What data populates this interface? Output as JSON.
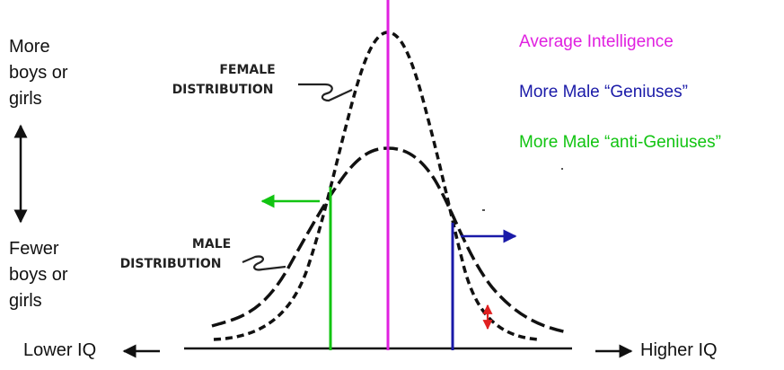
{
  "y_axis": {
    "top_label": [
      "More",
      "boys or",
      "girls"
    ],
    "bottom_label": [
      "Fewer",
      "boys or",
      "girls"
    ]
  },
  "x_axis": {
    "left_label": "Lower IQ",
    "right_label": "Higher IQ"
  },
  "legend": [
    {
      "text": "Average Intelligence",
      "color": "#e020e0"
    },
    {
      "text": "More Male “Geniuses”",
      "color": "#1a1aa8"
    },
    {
      "text": "More Male “anti-Geniuses”",
      "color": "#11c411"
    }
  ],
  "curve_labels": {
    "female": [
      "FEMALE",
      "DISTRIBUTION"
    ],
    "male": [
      "MALE",
      "DISTRIBUTION"
    ]
  },
  "colors": {
    "average_line": "#e020e0",
    "genius_line": "#1a1aa8",
    "anti_genius_line": "#11c411",
    "difference_marker": "#e02020",
    "curves": "#111111"
  }
}
